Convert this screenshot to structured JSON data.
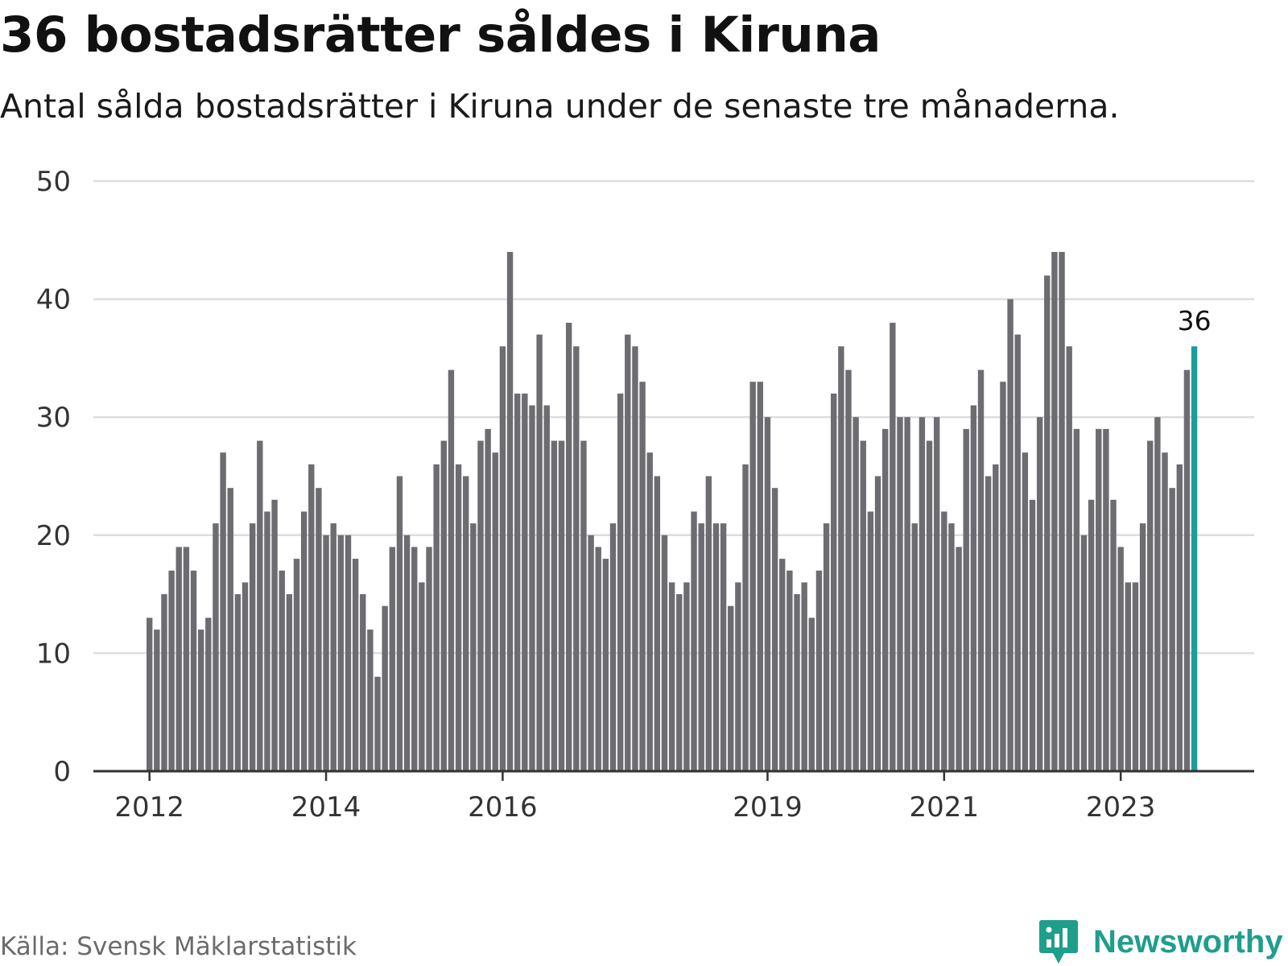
{
  "header": {
    "title": "36 bostadsrätter såldes i Kiruna",
    "subtitle": "Antal sålda bostadsrätter i Kiruna under de senaste tre månaderna."
  },
  "footer": {
    "source": "Källa: Svensk Mäklarstatistik",
    "brand": "Newsworthy"
  },
  "colors": {
    "bar": "#6d6c71",
    "highlight": "#1a9e96",
    "grid": "#dddddd",
    "axis": "#333333",
    "brand": "#1f9e8c"
  },
  "icons": {
    "brand_logo": "newsworthy-logo-icon"
  },
  "chart_data": {
    "type": "bar",
    "title": "36 bostadsrätter såldes i Kiruna",
    "subtitle": "Antal sålda bostadsrätter i Kiruna under de senaste tre månaderna.",
    "ylim": [
      0,
      50
    ],
    "yticks": [
      0,
      10,
      20,
      30,
      40,
      50
    ],
    "grid": true,
    "x_start": "2012-01",
    "x_interval": "month",
    "xtick_labels": [
      "2012",
      "2014",
      "2016",
      "2019",
      "2021",
      "2023"
    ],
    "values": [
      13,
      12,
      15,
      17,
      19,
      19,
      17,
      12,
      13,
      21,
      27,
      24,
      15,
      16,
      21,
      28,
      22,
      23,
      17,
      15,
      18,
      22,
      26,
      24,
      20,
      21,
      20,
      20,
      18,
      15,
      12,
      8,
      14,
      19,
      25,
      20,
      19,
      16,
      19,
      26,
      28,
      34,
      26,
      25,
      21,
      28,
      29,
      27,
      36,
      44,
      32,
      32,
      31,
      37,
      31,
      28,
      28,
      38,
      36,
      28,
      20,
      19,
      18,
      21,
      32,
      37,
      36,
      33,
      27,
      25,
      20,
      16,
      15,
      16,
      22,
      21,
      25,
      21,
      21,
      14,
      16,
      26,
      33,
      33,
      30,
      24,
      18,
      17,
      15,
      16,
      13,
      17,
      21,
      32,
      36,
      34,
      30,
      28,
      22,
      25,
      29,
      38,
      30,
      30,
      21,
      30,
      28,
      30,
      22,
      21,
      19,
      29,
      31,
      34,
      25,
      26,
      33,
      40,
      37,
      27,
      23,
      30,
      42,
      44,
      44,
      36,
      29,
      20,
      23,
      29,
      29,
      23,
      19,
      16,
      16,
      21,
      28,
      30,
      27,
      24,
      26,
      34,
      36
    ],
    "highlight_last": true,
    "last_value_label": "36"
  }
}
